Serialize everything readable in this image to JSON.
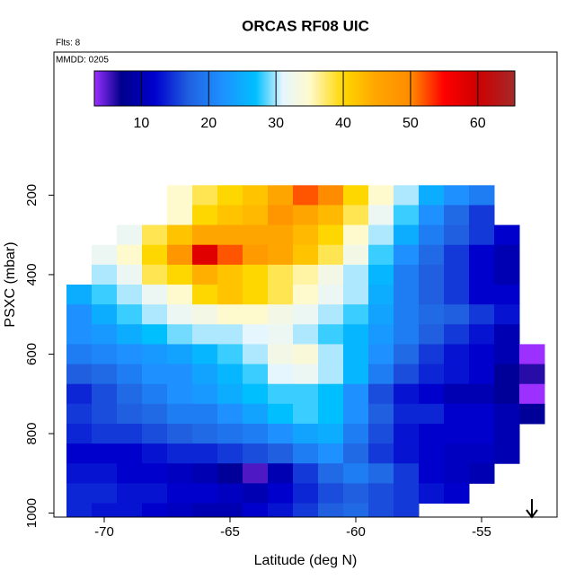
{
  "chart_data": {
    "type": "heatmap",
    "title": "ORCAS RF08 UIC",
    "flights_label": "Flts: 8",
    "date_label": "MMDD: 0205",
    "xlabel": "Latitude (deg N)",
    "ylabel": "PSXC (mbar)",
    "x": [
      -71,
      -70,
      -69,
      -68,
      -67,
      -66,
      -65,
      -64,
      -63,
      -62,
      -61,
      -60,
      -59,
      -58,
      -57,
      -56,
      -55,
      -54,
      -53
    ],
    "y": [
      200,
      250,
      300,
      350,
      400,
      450,
      500,
      550,
      600,
      650,
      700,
      750,
      800,
      850,
      900,
      950,
      1000
    ],
    "z": [
      [
        null,
        null,
        null,
        null,
        35,
        38,
        40,
        42,
        45,
        52,
        50,
        40,
        35,
        30,
        25,
        22,
        20,
        null,
        null
      ],
      [
        null,
        null,
        null,
        null,
        35,
        40,
        42,
        43,
        48,
        45,
        43,
        38,
        32,
        28,
        22,
        18,
        15,
        null,
        null
      ],
      [
        null,
        null,
        32,
        38,
        42,
        45,
        45,
        45,
        45,
        43,
        40,
        35,
        30,
        25,
        20,
        17,
        15,
        12,
        null
      ],
      [
        null,
        32,
        35,
        40,
        48,
        58,
        52,
        47,
        45,
        42,
        38,
        33,
        28,
        22,
        18,
        15,
        12,
        10,
        null
      ],
      [
        null,
        30,
        32,
        38,
        40,
        44,
        42,
        40,
        38,
        36,
        33,
        30,
        26,
        20,
        17,
        15,
        12,
        10,
        null
      ],
      [
        25,
        28,
        30,
        32,
        35,
        40,
        42,
        40,
        38,
        35,
        32,
        30,
        25,
        20,
        17,
        15,
        12,
        12,
        null
      ],
      [
        22,
        25,
        28,
        30,
        32,
        33,
        35,
        35,
        33,
        32,
        30,
        28,
        24,
        20,
        18,
        17,
        15,
        13,
        null
      ],
      [
        22,
        23,
        25,
        27,
        29,
        30,
        30,
        31,
        32,
        30,
        28,
        26,
        23,
        20,
        17,
        15,
        13,
        10,
        null
      ],
      [
        20,
        21,
        22,
        23,
        24,
        26,
        28,
        30,
        33,
        34,
        30,
        26,
        22,
        18,
        15,
        13,
        12,
        10,
        3
      ],
      [
        17,
        18,
        20,
        22,
        22,
        24,
        26,
        28,
        31,
        32,
        30,
        26,
        20,
        16,
        14,
        13,
        12,
        8,
        6
      ],
      [
        14,
        16,
        18,
        20,
        22,
        23,
        25,
        27,
        28,
        28,
        27,
        22,
        16,
        13,
        12,
        10,
        10,
        8,
        3
      ],
      [
        15,
        16,
        17,
        18,
        20,
        20,
        22,
        24,
        27,
        28,
        27,
        22,
        17,
        14,
        14,
        12,
        12,
        10,
        8
      ],
      [
        14,
        15,
        15,
        16,
        17,
        18,
        19,
        20,
        22,
        24,
        25,
        20,
        16,
        13,
        12,
        12,
        12,
        10,
        null
      ],
      [
        12,
        12,
        12,
        13,
        14,
        14,
        15,
        16,
        17,
        20,
        22,
        18,
        15,
        13,
        12,
        11,
        11,
        10,
        null
      ],
      [
        13,
        13,
        12,
        12,
        11,
        10,
        8,
        5,
        10,
        15,
        18,
        20,
        18,
        15,
        12,
        11,
        10,
        null,
        null
      ],
      [
        14,
        14,
        13,
        13,
        12,
        12,
        11,
        10,
        12,
        14,
        16,
        17,
        16,
        15,
        13,
        12,
        null,
        null,
        null
      ],
      [
        14,
        13,
        13,
        12,
        11,
        10,
        10,
        12,
        13,
        15,
        17,
        18,
        16,
        15,
        null,
        null,
        null,
        null,
        null
      ]
    ],
    "xlim": [
      -72,
      -52
    ],
    "ylim": [
      1010,
      -160
    ],
    "xticks": [
      -70,
      -65,
      -60,
      -55
    ],
    "yticks": [
      200,
      400,
      600,
      800,
      1000
    ],
    "colorbar_lim": [
      3,
      65.5
    ],
    "colorbar_ticks": [
      10,
      20,
      30,
      40,
      50,
      60
    ],
    "colormap": [
      [
        3,
        "#9b30ff"
      ],
      [
        7,
        "#00008b"
      ],
      [
        12,
        "#0000cd"
      ],
      [
        17,
        "#2060e0"
      ],
      [
        22,
        "#1e90ff"
      ],
      [
        27,
        "#00bfff"
      ],
      [
        31,
        "#e6f6ff"
      ],
      [
        35,
        "#fffacd"
      ],
      [
        40,
        "#ffd700"
      ],
      [
        45,
        "#ffa500"
      ],
      [
        50,
        "#ff8c00"
      ],
      [
        55,
        "#ff0000"
      ],
      [
        60,
        "#cd0000"
      ],
      [
        65.5,
        "#a52a2a"
      ]
    ]
  }
}
